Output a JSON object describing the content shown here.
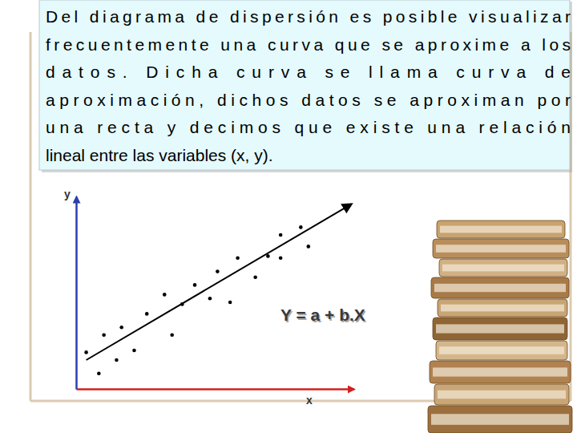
{
  "chart_data": {
    "type": "scatter",
    "text_lines": [
      "Del diagrama de dispersión es posible visualizar",
      "frecuentemente una curva que se aproxime a los",
      "datos. Dicha curva se llama curva de",
      "aproximación, dichos datos se aproximan por",
      "una recta y decimos que existe una relación",
      "lineal entre las variables (x, y)."
    ],
    "equation": "Y = a + b.X",
    "x_label": "x",
    "y_label": "y",
    "xlim": [
      0,
      11
    ],
    "ylim": [
      0,
      10
    ],
    "tick_labels": false,
    "series": [
      {
        "type": "scatter",
        "color": "#000000",
        "marker": "circle",
        "x": [
          0.4,
          0.9,
          1.1,
          1.6,
          1.8,
          2.3,
          2.8,
          3.5,
          3.8,
          4.2,
          4.7,
          5.3,
          5.6,
          6.1,
          6.4,
          7.1,
          7.6,
          8.1,
          8.1,
          8.9,
          9.2
        ],
        "values": [
          1.9,
          0.8,
          2.8,
          1.5,
          3.2,
          2.0,
          3.9,
          4.9,
          2.8,
          4.4,
          5.4,
          4.7,
          6.1,
          4.5,
          6.8,
          5.8,
          6.9,
          6.8,
          8.0,
          8.4,
          7.4
        ]
      },
      {
        "type": "line",
        "color": "#000000",
        "line_style": "solid",
        "x": [
          0.4,
          10.9
        ],
        "values": [
          1.5,
          9.6
        ]
      }
    ]
  }
}
